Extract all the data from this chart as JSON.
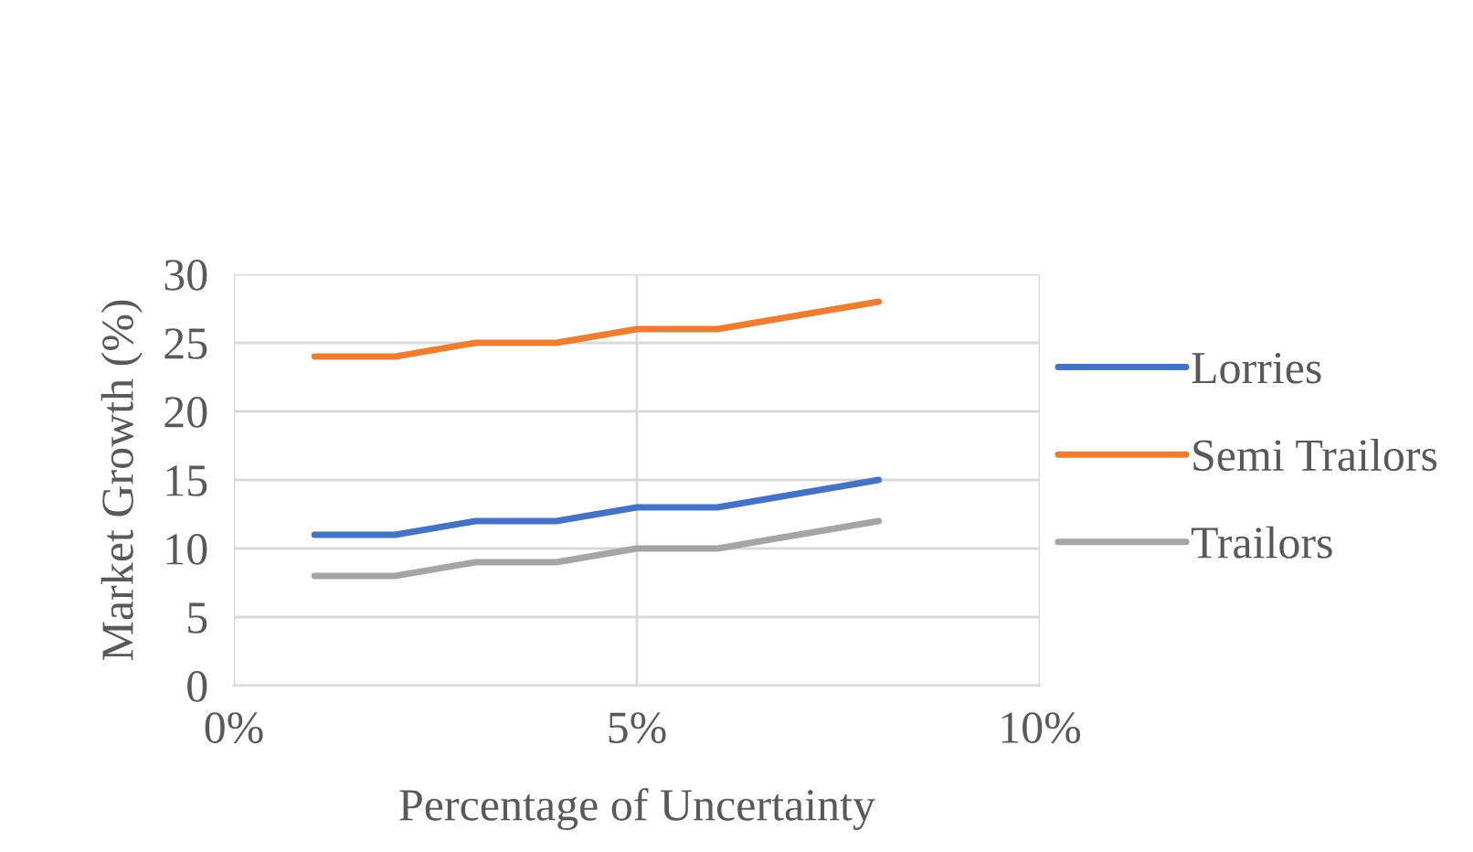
{
  "chart_data": {
    "type": "line",
    "xlabel": "Percentage of Uncertainty",
    "ylabel": "Market Growth (%)",
    "x": [
      1,
      2,
      3,
      4,
      5,
      6,
      8
    ],
    "series": [
      {
        "name": "Lorries",
        "color": "#4472c4",
        "values": [
          11,
          11,
          12,
          12,
          13,
          13,
          15
        ]
      },
      {
        "name": "Semi Trailors",
        "color": "#ed7d31",
        "values": [
          24,
          24,
          25,
          25,
          26,
          26,
          28
        ]
      },
      {
        "name": "Trailors",
        "color": "#a5a5a5",
        "values": [
          8,
          8,
          9,
          9,
          10,
          10,
          12
        ]
      }
    ],
    "xlim": [
      0,
      10
    ],
    "xticks": [
      {
        "value": 0,
        "label": "0%"
      },
      {
        "value": 5,
        "label": "5%"
      },
      {
        "value": 10,
        "label": "10%"
      }
    ],
    "ylim": [
      0,
      30
    ],
    "yticks": [
      0,
      5,
      10,
      15,
      20,
      25,
      30
    ],
    "grid": true,
    "legend": "right",
    "marker": "none",
    "line_style": "solid"
  }
}
